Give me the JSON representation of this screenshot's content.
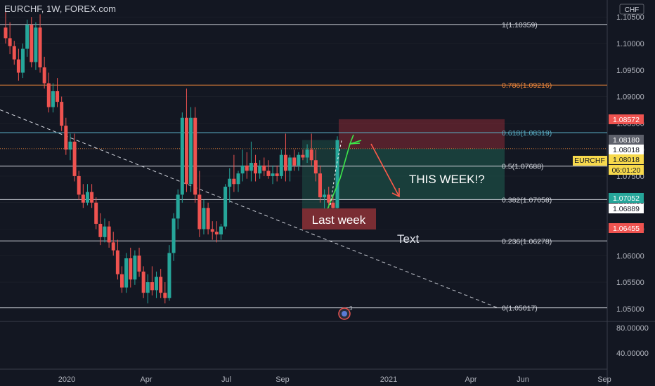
{
  "header": {
    "symbol_title": "EURCHF, 1W, FOREX.com",
    "currency": "CHF"
  },
  "colors": {
    "background": "#131722",
    "up": "#26a69a",
    "down": "#ef5350",
    "fib_line": "#d1d4dc",
    "fib_618": "#5aaec4",
    "fib_786": "#f0873a",
    "trend_line": "#d1d4dc",
    "stop_zone": "#8b2a35",
    "target_zone": "#1f5e50",
    "label_box": "#7a2d33",
    "grid": "#2a2e39"
  },
  "chart_data": {
    "type": "candlestick",
    "title": "EURCHF, 1W, FOREX.com",
    "ylim": [
      1.0476,
      1.1082
    ],
    "y_ticks": [
      "1.10500",
      "1.10000",
      "1.09500",
      "1.09000",
      "1.08500",
      "1.08000",
      "1.07500",
      "1.07000",
      "1.06500",
      "1.06000",
      "1.05500",
      "1.05000"
    ],
    "x_ticks": [
      "2020",
      "Apr",
      "Jul",
      "Sep",
      "2021",
      "Jun",
      "Apr",
      "Sep"
    ],
    "fib_levels": [
      {
        "ratio": "1",
        "value": "1.10359",
        "label": "1(1.10359)"
      },
      {
        "ratio": "0.786",
        "value": "1.09216",
        "label": "0.786(1.09216)"
      },
      {
        "ratio": "0.618",
        "value": "1.08319",
        "label": "0.618(1.08319)"
      },
      {
        "ratio": "0.5",
        "value": "1.07688",
        "label": "0.5(1.07688)"
      },
      {
        "ratio": "0.382",
        "value": "1.07058",
        "label": "0.382(1.07058)"
      },
      {
        "ratio": "0.236",
        "value": "1.06278",
        "label": "0.236(1.06278)"
      },
      {
        "ratio": "0",
        "value": "1.05017",
        "label": "0(1.05017)"
      }
    ],
    "price_tags": [
      {
        "value": "1.08572",
        "style": "red"
      },
      {
        "value": "1.08180",
        "style": "gray"
      },
      {
        "value": "1.08018",
        "style": "white"
      },
      {
        "value": "1.08018",
        "style": "yellow"
      },
      {
        "value": "06:01:20",
        "style": "yellow"
      },
      {
        "value": "1.07052",
        "style": "green"
      },
      {
        "value": "1.06889",
        "style": "white"
      },
      {
        "value": "1.06455",
        "style": "red"
      }
    ],
    "symbol_tag": "EURCHF",
    "indicator_pane": {
      "ticks": [
        "80.00000",
        "40.00000"
      ]
    },
    "candles": [
      {
        "o": 1.103,
        "h": 1.106,
        "l": 1.1,
        "c": 1.101
      },
      {
        "o": 1.101,
        "h": 1.104,
        "l": 1.098,
        "c": 1.0995
      },
      {
        "o": 1.0995,
        "h": 1.1005,
        "l": 1.096,
        "c": 1.097
      },
      {
        "o": 1.097,
        "h": 1.099,
        "l": 1.093,
        "c": 1.0945
      },
      {
        "o": 1.0945,
        "h": 1.1,
        "l": 1.0935,
        "c": 1.099
      },
      {
        "o": 1.099,
        "h": 1.1045,
        "l": 1.0975,
        "c": 1.1035
      },
      {
        "o": 1.1035,
        "h": 1.105,
        "l": 1.0955,
        "c": 1.0965
      },
      {
        "o": 1.0965,
        "h": 1.104,
        "l": 1.095,
        "c": 1.103
      },
      {
        "o": 1.103,
        "h": 1.1055,
        "l": 1.0945,
        "c": 1.0955
      },
      {
        "o": 1.0955,
        "h": 1.0975,
        "l": 1.0915,
        "c": 1.0925
      },
      {
        "o": 1.0925,
        "h": 1.0945,
        "l": 1.087,
        "c": 1.088
      },
      {
        "o": 1.088,
        "h": 1.0925,
        "l": 1.087,
        "c": 1.091
      },
      {
        "o": 1.091,
        "h": 1.0935,
        "l": 1.088,
        "c": 1.089
      },
      {
        "o": 1.089,
        "h": 1.09,
        "l": 1.0835,
        "c": 1.0845
      },
      {
        "o": 1.0845,
        "h": 1.086,
        "l": 1.079,
        "c": 1.08
      },
      {
        "o": 1.08,
        "h": 1.083,
        "l": 1.078,
        "c": 1.0815
      },
      {
        "o": 1.0815,
        "h": 1.083,
        "l": 1.074,
        "c": 1.075
      },
      {
        "o": 1.075,
        "h": 1.076,
        "l": 1.0705,
        "c": 1.0715
      },
      {
        "o": 1.0715,
        "h": 1.0735,
        "l": 1.069,
        "c": 1.07
      },
      {
        "o": 1.07,
        "h": 1.0735,
        "l": 1.0695,
        "c": 1.072
      },
      {
        "o": 1.072,
        "h": 1.0735,
        "l": 1.069,
        "c": 1.07
      },
      {
        "o": 1.07,
        "h": 1.071,
        "l": 1.065,
        "c": 1.066
      },
      {
        "o": 1.066,
        "h": 1.068,
        "l": 1.062,
        "c": 1.0635
      },
      {
        "o": 1.0635,
        "h": 1.067,
        "l": 1.0625,
        "c": 1.0655
      },
      {
        "o": 1.0655,
        "h": 1.0665,
        "l": 1.0615,
        "c": 1.0625
      },
      {
        "o": 1.0625,
        "h": 1.0645,
        "l": 1.06,
        "c": 1.061
      },
      {
        "o": 1.061,
        "h": 1.063,
        "l": 1.0555,
        "c": 1.0565
      },
      {
        "o": 1.0565,
        "h": 1.058,
        "l": 1.053,
        "c": 1.054
      },
      {
        "o": 1.054,
        "h": 1.0605,
        "l": 1.053,
        "c": 1.0595
      },
      {
        "o": 1.0595,
        "h": 1.0615,
        "l": 1.054,
        "c": 1.0555
      },
      {
        "o": 1.0555,
        "h": 1.061,
        "l": 1.0545,
        "c": 1.06
      },
      {
        "o": 1.06,
        "h": 1.0615,
        "l": 1.056,
        "c": 1.057
      },
      {
        "o": 1.057,
        "h": 1.058,
        "l": 1.052,
        "c": 1.053
      },
      {
        "o": 1.053,
        "h": 1.0565,
        "l": 1.051,
        "c": 1.055
      },
      {
        "o": 1.055,
        "h": 1.058,
        "l": 1.0525,
        "c": 1.0535
      },
      {
        "o": 1.0535,
        "h": 1.057,
        "l": 1.052,
        "c": 1.056
      },
      {
        "o": 1.056,
        "h": 1.0575,
        "l": 1.052,
        "c": 1.053
      },
      {
        "o": 1.053,
        "h": 1.055,
        "l": 1.051,
        "c": 1.052
      },
      {
        "o": 1.052,
        "h": 1.062,
        "l": 1.0515,
        "c": 1.0605
      },
      {
        "o": 1.0605,
        "h": 1.068,
        "l": 1.059,
        "c": 1.067
      },
      {
        "o": 1.067,
        "h": 1.0725,
        "l": 1.065,
        "c": 1.0715
      },
      {
        "o": 1.0715,
        "h": 1.087,
        "l": 1.07,
        "c": 1.086
      },
      {
        "o": 1.086,
        "h": 1.0915,
        "l": 1.072,
        "c": 1.0735
      },
      {
        "o": 1.0735,
        "h": 1.088,
        "l": 1.072,
        "c": 1.086
      },
      {
        "o": 1.086,
        "h": 1.088,
        "l": 1.07,
        "c": 1.0715
      },
      {
        "o": 1.0715,
        "h": 1.076,
        "l": 1.0635,
        "c": 1.065
      },
      {
        "o": 1.065,
        "h": 1.0705,
        "l": 1.064,
        "c": 1.069
      },
      {
        "o": 1.069,
        "h": 1.07,
        "l": 1.064,
        "c": 1.065
      },
      {
        "o": 1.065,
        "h": 1.0665,
        "l": 1.063,
        "c": 1.0645
      },
      {
        "o": 1.0645,
        "h": 1.0665,
        "l": 1.0625,
        "c": 1.064
      },
      {
        "o": 1.064,
        "h": 1.066,
        "l": 1.063,
        "c": 1.0655
      },
      {
        "o": 1.0655,
        "h": 1.0735,
        "l": 1.065,
        "c": 1.073
      },
      {
        "o": 1.073,
        "h": 1.0765,
        "l": 1.07,
        "c": 1.0745
      },
      {
        "o": 1.0745,
        "h": 1.079,
        "l": 1.072,
        "c": 1.0735
      },
      {
        "o": 1.0735,
        "h": 1.076,
        "l": 1.072,
        "c": 1.0755
      },
      {
        "o": 1.0755,
        "h": 1.08,
        "l": 1.074,
        "c": 1.077
      },
      {
        "o": 1.077,
        "h": 1.0795,
        "l": 1.0745,
        "c": 1.076
      },
      {
        "o": 1.076,
        "h": 1.0815,
        "l": 1.074,
        "c": 1.0775
      },
      {
        "o": 1.0775,
        "h": 1.079,
        "l": 1.074,
        "c": 1.0755
      },
      {
        "o": 1.0755,
        "h": 1.078,
        "l": 1.0745,
        "c": 1.077
      },
      {
        "o": 1.077,
        "h": 1.0785,
        "l": 1.075,
        "c": 1.076
      },
      {
        "o": 1.076,
        "h": 1.078,
        "l": 1.0745,
        "c": 1.075
      },
      {
        "o": 1.075,
        "h": 1.077,
        "l": 1.0735,
        "c": 1.0755
      },
      {
        "o": 1.0755,
        "h": 1.077,
        "l": 1.074,
        "c": 1.075
      },
      {
        "o": 1.075,
        "h": 1.08,
        "l": 1.0745,
        "c": 1.079
      },
      {
        "o": 1.079,
        "h": 1.083,
        "l": 1.074,
        "c": 1.076
      },
      {
        "o": 1.076,
        "h": 1.079,
        "l": 1.074,
        "c": 1.0785
      },
      {
        "o": 1.0785,
        "h": 1.08,
        "l": 1.076,
        "c": 1.077
      },
      {
        "o": 1.077,
        "h": 1.0795,
        "l": 1.076,
        "c": 1.079
      },
      {
        "o": 1.079,
        "h": 1.08,
        "l": 1.078,
        "c": 1.0785
      },
      {
        "o": 1.0785,
        "h": 1.081,
        "l": 1.0775,
        "c": 1.08
      },
      {
        "o": 1.08,
        "h": 1.083,
        "l": 1.077,
        "c": 1.078
      },
      {
        "o": 1.078,
        "h": 1.08,
        "l": 1.074,
        "c": 1.0755
      },
      {
        "o": 1.0755,
        "h": 1.077,
        "l": 1.07,
        "c": 1.071
      },
      {
        "o": 1.071,
        "h": 1.0725,
        "l": 1.0685,
        "c": 1.0715
      },
      {
        "o": 1.0715,
        "h": 1.073,
        "l": 1.069,
        "c": 1.07
      },
      {
        "o": 1.07,
        "h": 1.0712,
        "l": 1.0685,
        "c": 1.069
      },
      {
        "o": 1.069,
        "h": 1.0825,
        "l": 1.0688,
        "c": 1.0818
      }
    ],
    "annotations": [
      "Last week",
      "THIS WEEK!?",
      "Text"
    ],
    "event_badge": "3"
  }
}
